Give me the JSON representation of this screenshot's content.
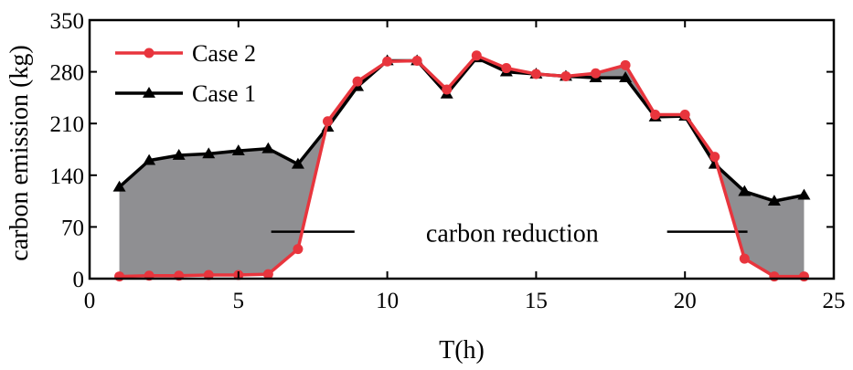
{
  "chart_data": {
    "type": "line",
    "xlabel": "T(h)",
    "ylabel": "carbon emission (kg)",
    "xlim": [
      0,
      25
    ],
    "ylim": [
      0,
      350
    ],
    "xticks": [
      0,
      5,
      10,
      15,
      20,
      25
    ],
    "yticks": [
      0,
      70,
      140,
      210,
      280,
      350
    ],
    "grid": false,
    "legend_position": "top-left",
    "x": [
      1,
      2,
      3,
      4,
      5,
      6,
      7,
      8,
      9,
      10,
      11,
      12,
      13,
      14,
      15,
      16,
      17,
      18,
      19,
      20,
      21,
      22,
      23,
      24
    ],
    "series": [
      {
        "name": "Case 2",
        "color": "#e8353d",
        "marker": "circle",
        "values": [
          3,
          4,
          4,
          5,
          5,
          6,
          40,
          213,
          267,
          294,
          295,
          256,
          302,
          285,
          277,
          274,
          278,
          289,
          222,
          222,
          165,
          27,
          3,
          3
        ]
      },
      {
        "name": "Case 1",
        "color": "#000000",
        "marker": "triangle",
        "values": [
          124,
          160,
          167,
          169,
          173,
          176,
          155,
          205,
          260,
          295,
          295,
          250,
          299,
          280,
          277,
          274,
          272,
          272,
          219,
          220,
          155,
          118,
          105,
          113
        ]
      }
    ],
    "annotation": {
      "text": "carbon reduction",
      "description": "shaded area between Case 1 and Case 2"
    },
    "shade_color": "#8f8f92"
  }
}
